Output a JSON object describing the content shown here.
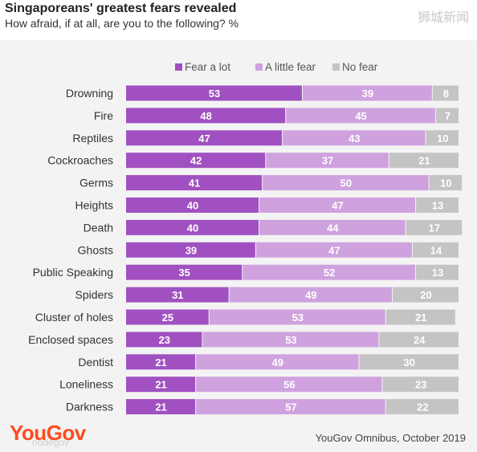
{
  "header": {
    "title": "Singaporeans' greatest fears revealed",
    "subtitle": "How afraid, if at all, are you to the following? %",
    "watermark": "狮城新闻"
  },
  "footer": {
    "logo": "YouGov",
    "logo_watermark": "nodegov",
    "source": "YouGov Omnibus, October 2019"
  },
  "chart_data": {
    "type": "bar",
    "orientation": "horizontal",
    "stacked": true,
    "title": "Singaporeans' greatest fears revealed",
    "subtitle": "How afraid, if at all, are you to the following? %",
    "legend_position": "top-right",
    "xlim": [
      0,
      100
    ],
    "categories": [
      "Drowning",
      "Fire",
      "Reptiles",
      "Cockroaches",
      "Germs",
      "Heights",
      "Death",
      "Ghosts",
      "Public Speaking",
      "Spiders",
      "Cluster of holes",
      "Enclosed spaces",
      "Dentist",
      "Loneliness",
      "Darkness"
    ],
    "series": [
      {
        "name": "Fear a lot",
        "color": "#a050c0",
        "values": [
          53,
          48,
          47,
          42,
          41,
          40,
          40,
          39,
          35,
          31,
          25,
          23,
          21,
          21,
          21
        ]
      },
      {
        "name": "A little fear",
        "color": "#cfa2df",
        "values": [
          39,
          45,
          43,
          37,
          50,
          47,
          44,
          47,
          52,
          49,
          53,
          53,
          49,
          56,
          57
        ]
      },
      {
        "name": "No fear",
        "color": "#c4c4c4",
        "values": [
          8,
          7,
          10,
          21,
          10,
          13,
          17,
          14,
          13,
          20,
          21,
          24,
          30,
          23,
          22
        ]
      }
    ]
  }
}
